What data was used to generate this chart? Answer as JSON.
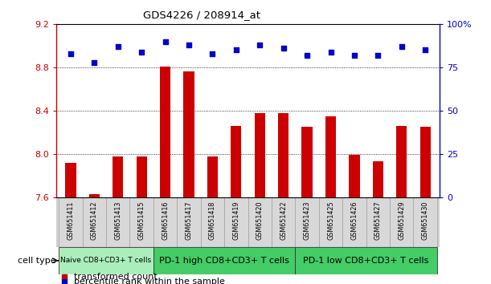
{
  "title": "GDS4226 / 208914_at",
  "categories": [
    "GSM651411",
    "GSM651412",
    "GSM651413",
    "GSM651415",
    "GSM651416",
    "GSM651417",
    "GSM651418",
    "GSM651419",
    "GSM651420",
    "GSM651422",
    "GSM651423",
    "GSM651425",
    "GSM651426",
    "GSM651427",
    "GSM651429",
    "GSM651430"
  ],
  "bar_values": [
    7.92,
    7.63,
    7.98,
    7.98,
    8.81,
    8.76,
    7.98,
    8.26,
    8.38,
    8.38,
    8.25,
    8.35,
    7.99,
    7.93,
    8.26,
    8.25
  ],
  "dot_values": [
    83,
    78,
    87,
    84,
    90,
    88,
    83,
    85,
    88,
    86,
    82,
    84,
    82,
    82,
    87,
    85
  ],
  "bar_color": "#cc0000",
  "dot_color": "#0000cc",
  "ylim_left": [
    7.6,
    9.2
  ],
  "ylim_right": [
    0,
    100
  ],
  "yticks_left": [
    7.6,
    8.0,
    8.4,
    8.8,
    9.2
  ],
  "yticks_right": [
    0,
    25,
    50,
    75,
    100
  ],
  "grid_values": [
    8.0,
    8.4,
    8.8
  ],
  "groups_def": [
    {
      "start": 0,
      "end": 3,
      "color": "#aaeebb",
      "label": "Naive CD8+CD3+ T cells",
      "fontsize": 6.5
    },
    {
      "start": 4,
      "end": 9,
      "color": "#44cc66",
      "label": "PD-1 high CD8+CD3+ T cells",
      "fontsize": 8
    },
    {
      "start": 10,
      "end": 15,
      "color": "#44cc66",
      "label": "PD-1 low CD8+CD3+ T cells",
      "fontsize": 8
    }
  ],
  "cell_type_label": "cell type",
  "legend_items": [
    {
      "label": "transformed count",
      "color": "#cc0000"
    },
    {
      "label": "percentile rank within the sample",
      "color": "#0000cc"
    }
  ],
  "xtick_bg": "#d0d0d0",
  "xtick_edge": "#999999"
}
